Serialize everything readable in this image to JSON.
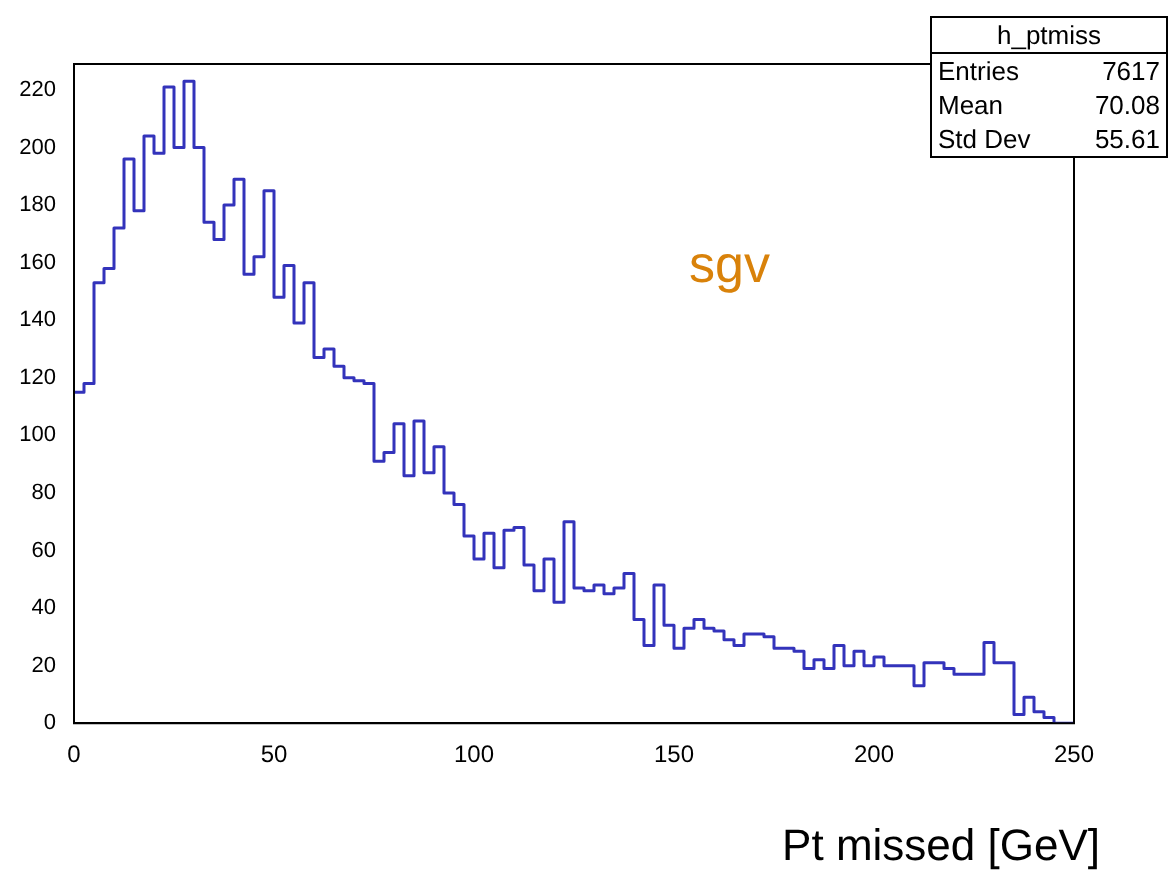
{
  "chart_data": {
    "type": "histogram",
    "xlabel": "Pt missed [GeV]",
    "annotations": [
      "sgv",
      "h_ptmiss",
      "Entries 7617",
      "Mean 70.08",
      "Std Dev 55.61"
    ],
    "bins": [
      0,
      2.5,
      5,
      7.5,
      10,
      12.5,
      15,
      17.5,
      20,
      22.5,
      25,
      27.5,
      30,
      32.5,
      35,
      37.5,
      40,
      42.5,
      45,
      47.5,
      50,
      52.5,
      55,
      57.5,
      60,
      62.5,
      65,
      67.5,
      70,
      72.5,
      75,
      77.5,
      80,
      82.5,
      85,
      87.5,
      90,
      92.5,
      95,
      97.5,
      100,
      102.5,
      105,
      107.5,
      110,
      112.5,
      115,
      117.5,
      120,
      122.5,
      125,
      127.5,
      130,
      132.5,
      135,
      137.5,
      140,
      142.5,
      145,
      147.5,
      150,
      152.5,
      155,
      157.5,
      160,
      162.5,
      165,
      167.5,
      170,
      172.5,
      175,
      177.5,
      180,
      182.5,
      185,
      187.5,
      190,
      192.5,
      195,
      197.5,
      200,
      202.5,
      205,
      207.5,
      210,
      212.5,
      215,
      217.5,
      220,
      222.5,
      225,
      227.5,
      230,
      232.5,
      235,
      237.5,
      240,
      242.5,
      245,
      247.5,
      250
    ],
    "values": [
      115,
      118,
      153,
      158,
      172,
      196,
      178,
      204,
      198,
      221,
      200,
      223,
      200,
      174,
      168,
      180,
      189,
      156,
      162,
      185,
      148,
      159,
      139,
      153,
      127,
      130,
      124,
      120,
      119,
      118,
      91,
      94,
      104,
      86,
      105,
      87,
      96,
      80,
      76,
      65,
      57,
      66,
      54,
      67,
      68,
      55,
      46,
      57,
      42,
      70,
      47,
      46,
      48,
      45,
      47,
      52,
      36,
      27,
      48,
      34,
      26,
      33,
      36,
      33,
      32,
      29,
      27,
      31,
      31,
      30,
      26,
      26,
      25,
      19,
      22,
      19,
      27,
      20,
      25,
      20,
      23,
      20,
      20,
      20,
      13,
      21,
      21,
      19,
      17,
      17,
      17,
      28,
      21,
      21,
      3,
      9,
      4,
      2,
      0,
      0
    ],
    "color": "#3333bb",
    "xlim": [
      0,
      250
    ],
    "xticks": [
      0,
      50,
      100,
      150,
      200,
      250
    ],
    "ylim": [
      0,
      229
    ],
    "yticks": [
      0,
      20,
      40,
      60,
      80,
      100,
      120,
      140,
      160,
      180,
      200,
      220
    ],
    "grid": false,
    "legend": false
  }
}
